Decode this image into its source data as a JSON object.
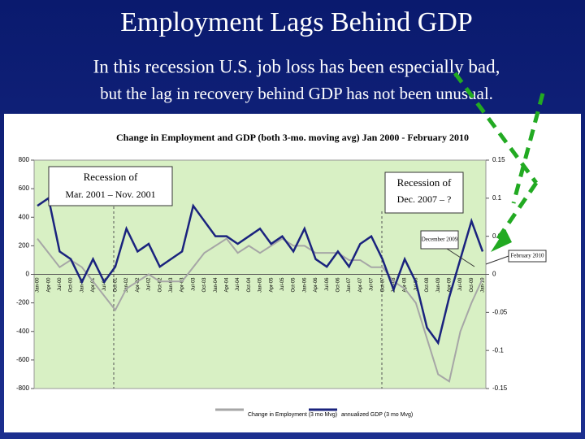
{
  "slide": {
    "title": "Employment Lags Behind GDP",
    "subtitle": [
      "In this recession U.S. job loss has been especially bad,",
      "but the lag in recovery behind GDP has not been unusual."
    ]
  },
  "chart_data": {
    "type": "line",
    "title": "Change in Employment and GDP (both 3-mo. moving avg) Jan 2000 - February 2010",
    "categories": [
      "Jan-00",
      "Apr-00",
      "Jul-00",
      "Oct-00",
      "Jan-01",
      "Apr-01",
      "Jul-01",
      "Oct-01",
      "Jan-02",
      "Apr-02",
      "Jul-02",
      "Oct-02",
      "Jan-03",
      "Apr-03",
      "Jul-03",
      "Oct-03",
      "Jan-04",
      "Apr-04",
      "Jul-04",
      "Oct-04",
      "Jan-05",
      "Apr-05",
      "Jul-05",
      "Oct-05",
      "Jan-06",
      "Apr-06",
      "Jul-06",
      "Oct-06",
      "Jan-07",
      "Apr-07",
      "Jul-07",
      "Oct-07",
      "Jan-08",
      "Apr-08",
      "Jul-08",
      "Oct-08",
      "Jan-09",
      "Apr-09",
      "Jul-09",
      "Oct-09",
      "Jan-10"
    ],
    "series": [
      {
        "name": "Change in Employment (3 mo Mvg)",
        "color": "#a6a6a6",
        "axis": "y",
        "values": [
          250,
          150,
          50,
          100,
          50,
          -50,
          -150,
          -250,
          -100,
          -50,
          0,
          -50,
          -50,
          -50,
          50,
          150,
          200,
          250,
          150,
          200,
          150,
          200,
          250,
          200,
          200,
          150,
          150,
          150,
          100,
          100,
          50,
          50,
          -50,
          -100,
          -200,
          -450,
          -700,
          -750,
          -400,
          -200,
          -30
        ]
      },
      {
        "name": "annualized GDP (3 mo Mvg)",
        "color": "#1a237e",
        "axis": "y2",
        "values": [
          0.09,
          0.1,
          0.03,
          0.02,
          -0.01,
          0.02,
          -0.01,
          0.01,
          0.06,
          0.03,
          0.04,
          0.01,
          0.02,
          0.03,
          0.09,
          0.07,
          0.05,
          0.05,
          0.04,
          0.05,
          0.06,
          0.04,
          0.05,
          0.03,
          0.06,
          0.02,
          0.01,
          0.03,
          0.01,
          0.04,
          0.05,
          0.02,
          -0.02,
          0.02,
          -0.01,
          -0.07,
          -0.09,
          -0.03,
          0.02,
          0.07,
          0.03
        ]
      }
    ],
    "ylim": [
      -800,
      800
    ],
    "yticks": [
      800,
      600,
      400,
      200,
      0,
      -200,
      -400,
      -600,
      -800
    ],
    "y2lim": [
      -0.15,
      0.15
    ],
    "y2ticks": [
      0.15,
      0.1,
      0.05,
      0,
      -0.05,
      -0.1,
      -0.15
    ],
    "annotations": [
      "Recession of",
      "Mar. 2001 – Nov. 2001",
      "Recession of",
      "Dec. 2007 – ?",
      "December 2009",
      "February 2010"
    ]
  }
}
